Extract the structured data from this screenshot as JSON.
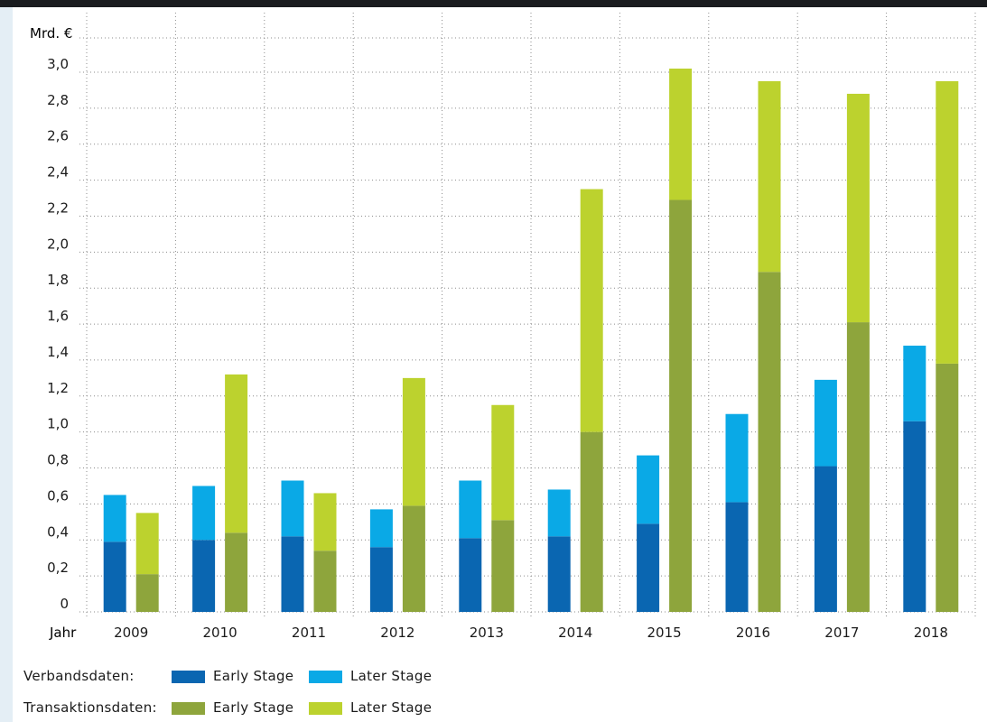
{
  "chart_data": {
    "type": "bar",
    "ylabel": "Mrd. €",
    "xlabel": "Jahr",
    "categories": [
      "2009",
      "2010",
      "2011",
      "2012",
      "2013",
      "2014",
      "2015",
      "2016",
      "2017",
      "2018"
    ],
    "ylim": [
      0,
      3.0
    ],
    "yticks": [
      "0",
      "0,2",
      "0,4",
      "0,6",
      "0,8",
      "1,0",
      "1,2",
      "1,4",
      "1,6",
      "1,8",
      "2,0",
      "2,2",
      "2,4",
      "2,6",
      "2,8",
      "3,0"
    ],
    "grid": true,
    "stacks": [
      {
        "group": "Verbandsdaten",
        "series": [
          {
            "name": "Early Stage",
            "color": "#0a66b1",
            "values": [
              0.39,
              0.4,
              0.42,
              0.36,
              0.41,
              0.42,
              0.49,
              0.61,
              0.81,
              1.06
            ]
          },
          {
            "name": "Later Stage",
            "color": "#0aa9e6",
            "values": [
              0.26,
              0.3,
              0.31,
              0.21,
              0.32,
              0.26,
              0.38,
              0.49,
              0.48,
              0.42
            ]
          }
        ]
      },
      {
        "group": "Transaktionsdaten",
        "series": [
          {
            "name": "Early Stage",
            "color": "#8ea53c",
            "values": [
              0.21,
              0.44,
              0.34,
              0.59,
              0.51,
              1.0,
              2.29,
              1.89,
              1.61,
              1.38
            ]
          },
          {
            "name": "Later Stage",
            "color": "#bcd22e",
            "values": [
              0.34,
              0.88,
              0.32,
              0.71,
              0.64,
              1.35,
              0.73,
              1.06,
              1.27,
              1.57
            ]
          }
        ]
      }
    ]
  },
  "legend": {
    "rows": [
      {
        "title": "Verbandsdaten:",
        "items": [
          {
            "label": "Early Stage",
            "color": "#0a66b1"
          },
          {
            "label": "Later Stage",
            "color": "#0aa9e6"
          }
        ]
      },
      {
        "title": "Transaktionsdaten:",
        "items": [
          {
            "label": "Early Stage",
            "color": "#8ea53c"
          },
          {
            "label": "Later Stage",
            "color": "#bcd22e"
          }
        ]
      }
    ]
  }
}
